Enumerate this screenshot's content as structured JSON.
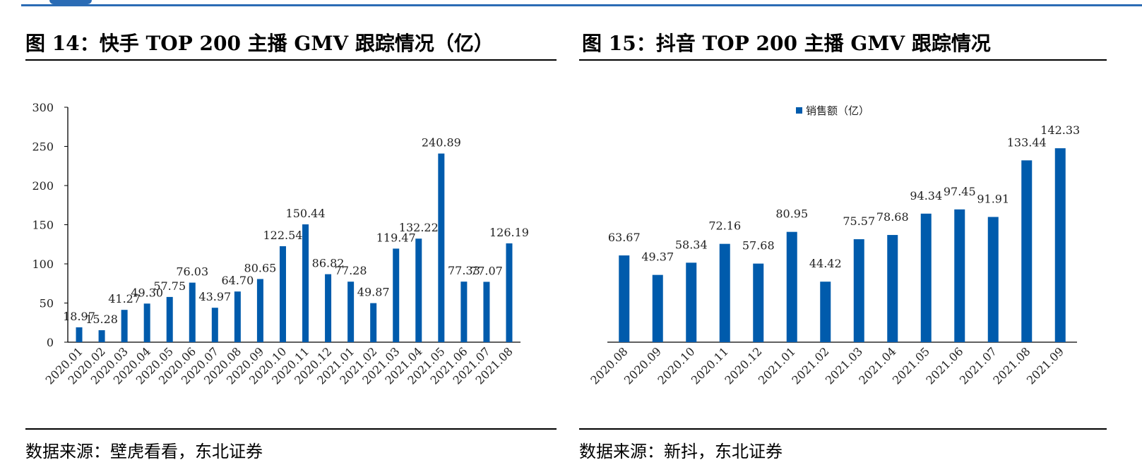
{
  "colors": {
    "bar": "#005bac",
    "header_rule": "#2b6cb5",
    "axis": "#000000"
  },
  "figures": [
    {
      "title": "图 14：快手 TOP 200 主播 GMV 跟踪情况（亿）",
      "source": "数据来源：壁虎看看，东北证券"
    },
    {
      "title": "图 15：抖音 TOP 200 主播 GMV 跟踪情况",
      "source": "数据来源：新抖，东北证券"
    }
  ],
  "chart_data": [
    {
      "type": "bar",
      "title": "",
      "xlabel": "",
      "ylabel": "",
      "ylim": [
        0,
        300
      ],
      "yticks": [
        0,
        50,
        100,
        150,
        200,
        250,
        300
      ],
      "grid": false,
      "legend": null,
      "categories": [
        "2020.01",
        "2020.02",
        "2020.03",
        "2020.04",
        "2020.05",
        "2020.06",
        "2020.07",
        "2020.08",
        "2020.09",
        "2020.10",
        "2020.11",
        "2020.12",
        "2021.01",
        "2021.02",
        "2021.03",
        "2021.04",
        "2021.05",
        "2021.06",
        "2021.07",
        "2021.08"
      ],
      "series": [
        {
          "values": [
            18.97,
            15.28,
            41.27,
            49.3,
            57.75,
            76.03,
            43.97,
            64.7,
            80.65,
            122.54,
            150.44,
            86.82,
            77.28,
            49.87,
            119.47,
            132.22,
            240.89,
            77.33,
            77.07,
            126.19
          ],
          "labels": [
            "18.97",
            "15.28",
            "41.27",
            "49.30",
            "57.75",
            "76.03",
            "43.97",
            "64.70",
            "80.65",
            "122.54",
            "150.44",
            "86.82",
            "77.28",
            "49.87",
            "119.47",
            "132.22",
            "240.89",
            "77.33",
            "77.07",
            "126.19"
          ]
        }
      ]
    },
    {
      "type": "bar",
      "title": "",
      "xlabel": "",
      "ylabel": "",
      "ylim": [
        0,
        160
      ],
      "grid": false,
      "legend": "top-center",
      "categories": [
        "2020.08",
        "2020.09",
        "2020.10",
        "2020.11",
        "2020.12",
        "2021.01",
        "2021.02",
        "2021.03",
        "2021.04",
        "2021.05",
        "2021.06",
        "2021.07",
        "2021.08",
        "2021.09"
      ],
      "series": [
        {
          "name": "销售额（亿）",
          "values": [
            63.67,
            49.37,
            58.34,
            72.16,
            57.68,
            80.95,
            44.42,
            75.57,
            78.68,
            94.34,
            97.45,
            91.91,
            133.44,
            142.33
          ],
          "labels": [
            "63.67",
            "49.37",
            "58.34",
            "72.16",
            "57.68",
            "80.95",
            "44.42",
            "75.57",
            "78.68",
            "94.34",
            "97.45",
            "91.91",
            "133.44",
            "142.33"
          ]
        }
      ]
    }
  ]
}
